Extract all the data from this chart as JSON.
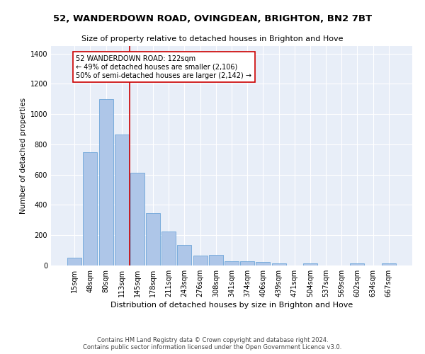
{
  "title": "52, WANDERDOWN ROAD, OVINGDEAN, BRIGHTON, BN2 7BT",
  "subtitle": "Size of property relative to detached houses in Brighton and Hove",
  "xlabel": "Distribution of detached houses by size in Brighton and Hove",
  "ylabel": "Number of detached properties",
  "footer1": "Contains HM Land Registry data © Crown copyright and database right 2024.",
  "footer2": "Contains public sector information licensed under the Open Government Licence v3.0.",
  "annotation_line1": "52 WANDERDOWN ROAD: 122sqm",
  "annotation_line2": "← 49% of detached houses are smaller (2,106)",
  "annotation_line3": "50% of semi-detached houses are larger (2,142) →",
  "bar_labels": [
    "15sqm",
    "48sqm",
    "80sqm",
    "113sqm",
    "145sqm",
    "178sqm",
    "211sqm",
    "243sqm",
    "276sqm",
    "308sqm",
    "341sqm",
    "374sqm",
    "406sqm",
    "439sqm",
    "471sqm",
    "504sqm",
    "537sqm",
    "569sqm",
    "602sqm",
    "634sqm",
    "667sqm"
  ],
  "bar_values": [
    50,
    750,
    1100,
    865,
    615,
    345,
    225,
    135,
    65,
    70,
    30,
    30,
    22,
    14,
    0,
    12,
    0,
    0,
    12,
    0,
    12
  ],
  "bar_color": "#aec6e8",
  "bar_edge_color": "#5b9bd5",
  "vline_x": 3.5,
  "vline_color": "#cc0000",
  "annotation_box_color": "#cc0000",
  "background_color": "#e8eef8",
  "ylim": [
    0,
    1450
  ],
  "yticks": [
    0,
    200,
    400,
    600,
    800,
    1000,
    1200,
    1400
  ],
  "title_fontsize": 9.5,
  "subtitle_fontsize": 8,
  "ylabel_fontsize": 7.5,
  "xlabel_fontsize": 8,
  "tick_fontsize": 7,
  "annotation_fontsize": 7,
  "footer_fontsize": 6
}
